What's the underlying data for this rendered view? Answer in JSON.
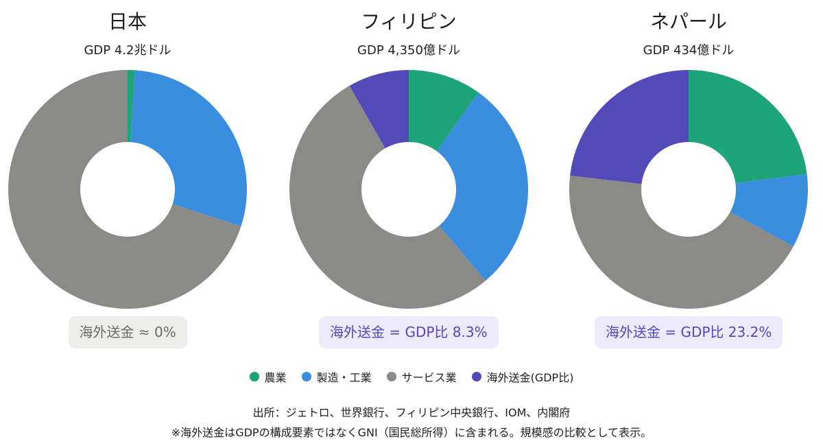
{
  "colors": {
    "agriculture": "#1fa378",
    "manufacturing": "#3b8de0",
    "services": "#8a8a86",
    "remittance": "#5449b8"
  },
  "chart_data": [
    {
      "type": "pie",
      "title": "日本",
      "subtitle": "GDP 4.2兆ドル",
      "categories": [
        "農業",
        "製造・工業",
        "サービス業",
        "海外送金(GDP比)"
      ],
      "values": [
        1,
        29,
        70,
        0
      ],
      "badge": "海外送金 ≈ 0%",
      "badge_style": "neutral"
    },
    {
      "type": "pie",
      "title": "フィリピン",
      "subtitle": "GDP 4,350億ドル",
      "categories": [
        "農業",
        "製造・工業",
        "サービス業",
        "海外送金(GDP比)"
      ],
      "values": [
        10,
        29,
        53,
        8.3
      ],
      "badge": "海外送金 = GDP比 8.3%",
      "badge_style": "accent"
    },
    {
      "type": "pie",
      "title": "ネパール",
      "subtitle": "GDP 434億ドル",
      "categories": [
        "農業",
        "製造・工業",
        "サービス業",
        "海外送金(GDP比)"
      ],
      "values": [
        23,
        10,
        44,
        23.2
      ],
      "badge": "海外送金 = GDP比 23.2%",
      "badge_style": "accent"
    }
  ],
  "legend": [
    {
      "label": "農業",
      "color": "#1fa378"
    },
    {
      "label": "製造・工業",
      "color": "#3b8de0"
    },
    {
      "label": "サービス業",
      "color": "#8a8a86"
    },
    {
      "label": "海外送金(GDP比)",
      "color": "#5449b8"
    }
  ],
  "source_note": "出所：ジェトロ、世界銀行、フィリピン中央銀行、IOM、内閣府",
  "footnote": "※海外送金はGDPの構成要素ではなくGNI（国民総所得）に含まれる。規模感の比較として表示。"
}
